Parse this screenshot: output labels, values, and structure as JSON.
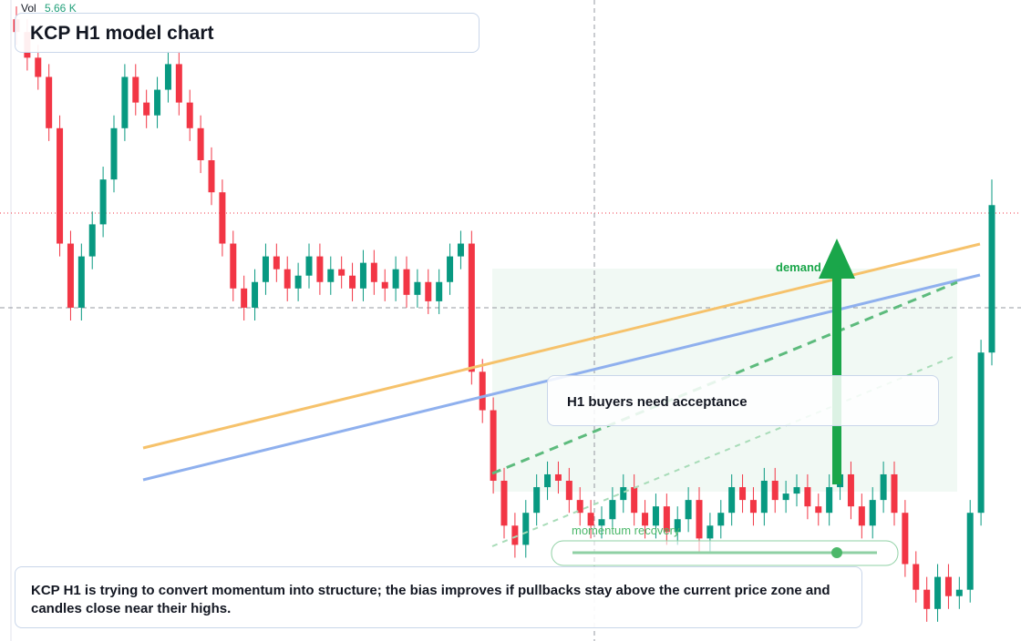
{
  "header": {
    "title": "KCP H1 model chart"
  },
  "volume": {
    "label": "Vol",
    "value": "5.66 K"
  },
  "annotations": {
    "demand": "demand side",
    "acceptance": "H1 buyers need acceptance",
    "momentum": "momentum recovery"
  },
  "caption": "KCP H1 is trying to convert momentum into structure; the bias improves if pullbacks stay above the current price zone and candles close near their highs.",
  "chart_data": {
    "type": "candlestick",
    "ylim": [
      0,
      100
    ],
    "up_color": "#089981",
    "down_color": "#f23645",
    "open": [
      97,
      95,
      91,
      88,
      80,
      62,
      52,
      60,
      65,
      72,
      80,
      88,
      84,
      82,
      86,
      90,
      84,
      80,
      75,
      70,
      62,
      55,
      52,
      56,
      60,
      58,
      55,
      57,
      60,
      56,
      58,
      57,
      55,
      59,
      56,
      55,
      58,
      54,
      56,
      53,
      56,
      60,
      62,
      42,
      36,
      25,
      18,
      15,
      20,
      24,
      26,
      25,
      22,
      20,
      18,
      19,
      22,
      24,
      20,
      18,
      21,
      17,
      19,
      22,
      16,
      18,
      20,
      24,
      22,
      20,
      25,
      22,
      23,
      24,
      21,
      20,
      24,
      26,
      21,
      18,
      22,
      26,
      20,
      12,
      8,
      5,
      10,
      7,
      8,
      20,
      45
    ],
    "high": [
      99,
      97,
      93,
      90,
      82,
      64,
      62,
      67,
      74,
      82,
      90,
      90,
      86,
      88,
      92,
      92,
      86,
      82,
      77,
      72,
      64,
      57,
      58,
      62,
      62,
      60,
      59,
      62,
      62,
      60,
      60,
      59,
      61,
      61,
      58,
      60,
      60,
      58,
      58,
      58,
      62,
      64,
      64,
      44,
      38,
      27,
      20,
      22,
      26,
      28,
      28,
      27,
      24,
      22,
      21,
      24,
      26,
      26,
      22,
      23,
      23,
      21,
      24,
      24,
      20,
      22,
      26,
      26,
      24,
      27,
      27,
      25,
      26,
      26,
      23,
      26,
      28,
      28,
      23,
      24,
      28,
      28,
      22,
      14,
      10,
      12,
      12,
      10,
      22,
      47,
      72
    ],
    "low": [
      93,
      89,
      86,
      78,
      60,
      50,
      50,
      58,
      63,
      70,
      78,
      82,
      80,
      80,
      84,
      82,
      78,
      73,
      68,
      60,
      53,
      50,
      50,
      54,
      56,
      53,
      53,
      55,
      54,
      54,
      55,
      53,
      53,
      54,
      53,
      53,
      52,
      52,
      51,
      51,
      54,
      58,
      40,
      34,
      23,
      16,
      13,
      13,
      18,
      22,
      23,
      20,
      18,
      16,
      16,
      17,
      20,
      18,
      16,
      16,
      15,
      15,
      17,
      14,
      14,
      16,
      18,
      20,
      18,
      18,
      20,
      20,
      21,
      19,
      18,
      18,
      22,
      19,
      16,
      16,
      20,
      18,
      10,
      6,
      3,
      3,
      5,
      5,
      6,
      18,
      43
    ],
    "close": [
      95,
      91,
      88,
      80,
      62,
      52,
      60,
      65,
      72,
      80,
      88,
      84,
      82,
      86,
      90,
      84,
      80,
      75,
      70,
      62,
      55,
      52,
      56,
      60,
      58,
      55,
      57,
      60,
      56,
      58,
      57,
      55,
      59,
      56,
      55,
      58,
      54,
      56,
      53,
      56,
      60,
      62,
      42,
      36,
      25,
      18,
      15,
      20,
      24,
      26,
      25,
      22,
      20,
      18,
      19,
      22,
      24,
      20,
      18,
      21,
      17,
      19,
      22,
      16,
      18,
      20,
      24,
      22,
      20,
      25,
      22,
      23,
      24,
      21,
      20,
      24,
      26,
      21,
      18,
      22,
      26,
      20,
      12,
      8,
      5,
      10,
      7,
      8,
      20,
      45,
      68
    ]
  }
}
